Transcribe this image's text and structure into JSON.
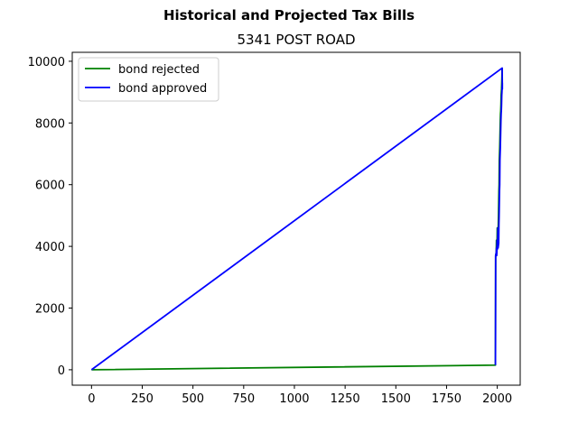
{
  "chart_data": {
    "type": "line",
    "suptitle": "Historical and Projected Tax Bills",
    "title": "5341 POST ROAD",
    "xlabel": "",
    "ylabel": "",
    "xlim": [
      -95,
      2113
    ],
    "ylim": [
      -500,
      10290
    ],
    "xticks": [
      0,
      250,
      500,
      750,
      1000,
      1250,
      1500,
      1750,
      2000
    ],
    "yticks": [
      0,
      2000,
      4000,
      6000,
      8000,
      10000
    ],
    "grid": false,
    "legend": "top-left",
    "series": [
      {
        "name": "bond rejected",
        "color": "#008000",
        "x": [
          0,
          1991,
          1992,
          1995,
          1996,
          1997,
          1998,
          1999,
          2000,
          2001,
          2002,
          2003,
          2004,
          2005,
          2006,
          2007,
          2008,
          2009,
          2010,
          2011,
          2012,
          2013,
          2014,
          2015,
          2016,
          2017,
          2018,
          2019,
          2020,
          2021,
          2022,
          2023,
          2024
        ],
        "y": [
          0,
          150,
          3700,
          3800,
          4200,
          3900,
          4000,
          4100,
          4600,
          3950,
          4000,
          4050,
          4100,
          4700,
          5000,
          5400,
          5800,
          6000,
          6800,
          7000,
          7200,
          7500,
          7800,
          8100,
          8300,
          8400,
          8600,
          8900,
          9000,
          9100,
          9300,
          9500,
          9780
        ]
      },
      {
        "name": "bond approved",
        "color": "#0000ff",
        "x": [
          0,
          2024,
          2025,
          2025,
          2024,
          2023,
          2022,
          2021,
          2020,
          2019,
          2018,
          2017,
          2016,
          2015,
          2014,
          2013,
          2012,
          2011,
          2010,
          2009,
          2008,
          2007,
          2006,
          2005,
          2004,
          2003,
          2002,
          2001,
          2000,
          1999,
          1998,
          1997,
          1996,
          1995,
          1992,
          1991
        ],
        "y": [
          0,
          9780,
          9100,
          9300,
          9200,
          9000,
          8900,
          8600,
          8400,
          8300,
          8100,
          7800,
          7500,
          7200,
          7000,
          6800,
          6000,
          5800,
          5400,
          5000,
          4700,
          4100,
          4050,
          4000,
          3950,
          4600,
          4100,
          4000,
          3900,
          4200,
          3800,
          3700,
          3950,
          3800,
          3700,
          150
        ]
      }
    ]
  }
}
